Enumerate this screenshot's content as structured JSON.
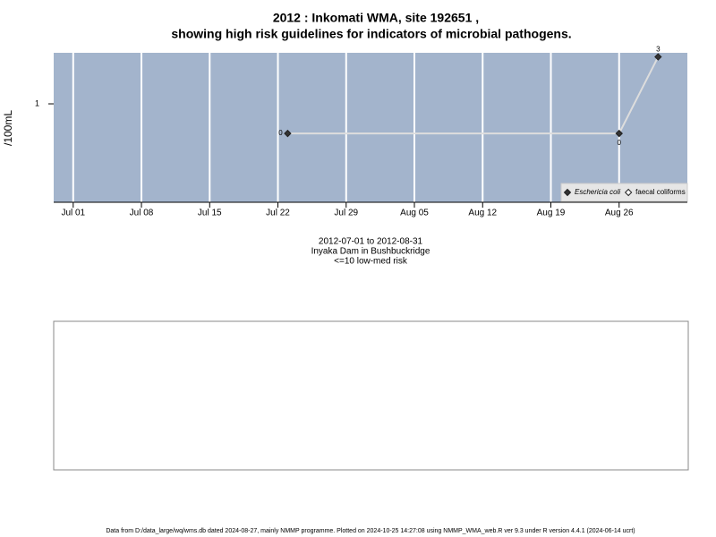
{
  "chart_data": {
    "type": "line",
    "title": "2012 : Inkomati WMA, site 192651 ,",
    "subtitle": "showing high risk guidelines for indicators of microbial pathogens.",
    "ylabel": "/100mL",
    "notes": [
      "2012-07-01 to 2012-08-31",
      "Inyaka Dam in Bushbuckridge",
      "<=10 low-med risk"
    ],
    "footer": "Data from D:/data_large/wq/wms.db dated 2024-08-27, mainly NMMP programme. Plotted on 2024-10-25 14:27:08 using NMMP_WMA_web.R ver 9.3 under R version 4.4.1 (2024-06-14 ucrt)",
    "x": [
      "2012-07-23",
      "2012-08-26",
      "2012-08-30"
    ],
    "series": [
      {
        "name": "Eschericia coli",
        "color": "#333333",
        "values": [
          0.5,
          0.5,
          3
        ],
        "value_labels": [
          "0",
          "0",
          "3"
        ]
      },
      {
        "name": "faecal coliforms",
        "color": "#ffffff",
        "values": [
          null,
          null,
          null
        ]
      }
    ],
    "line_color": "#dddddd",
    "xlim": [
      "2012-06-29",
      "2012-09-02"
    ],
    "xticks": [
      {
        "value": "2012-07-01",
        "label": "Jul 01"
      },
      {
        "value": "2012-07-08",
        "label": "Jul 08"
      },
      {
        "value": "2012-07-15",
        "label": "Jul 15"
      },
      {
        "value": "2012-07-22",
        "label": "Jul 22"
      },
      {
        "value": "2012-07-29",
        "label": "Jul 29"
      },
      {
        "value": "2012-08-05",
        "label": "Aug 05"
      },
      {
        "value": "2012-08-12",
        "label": "Aug 12"
      },
      {
        "value": "2012-08-19",
        "label": "Aug 19"
      },
      {
        "value": "2012-08-26",
        "label": "Aug 26"
      }
    ],
    "ylim": [
      0.1,
      3.3
    ],
    "yticks": [
      1
    ],
    "log_y": true,
    "grid": true,
    "legend": "bottom-right",
    "background": "#a3b4cc"
  }
}
